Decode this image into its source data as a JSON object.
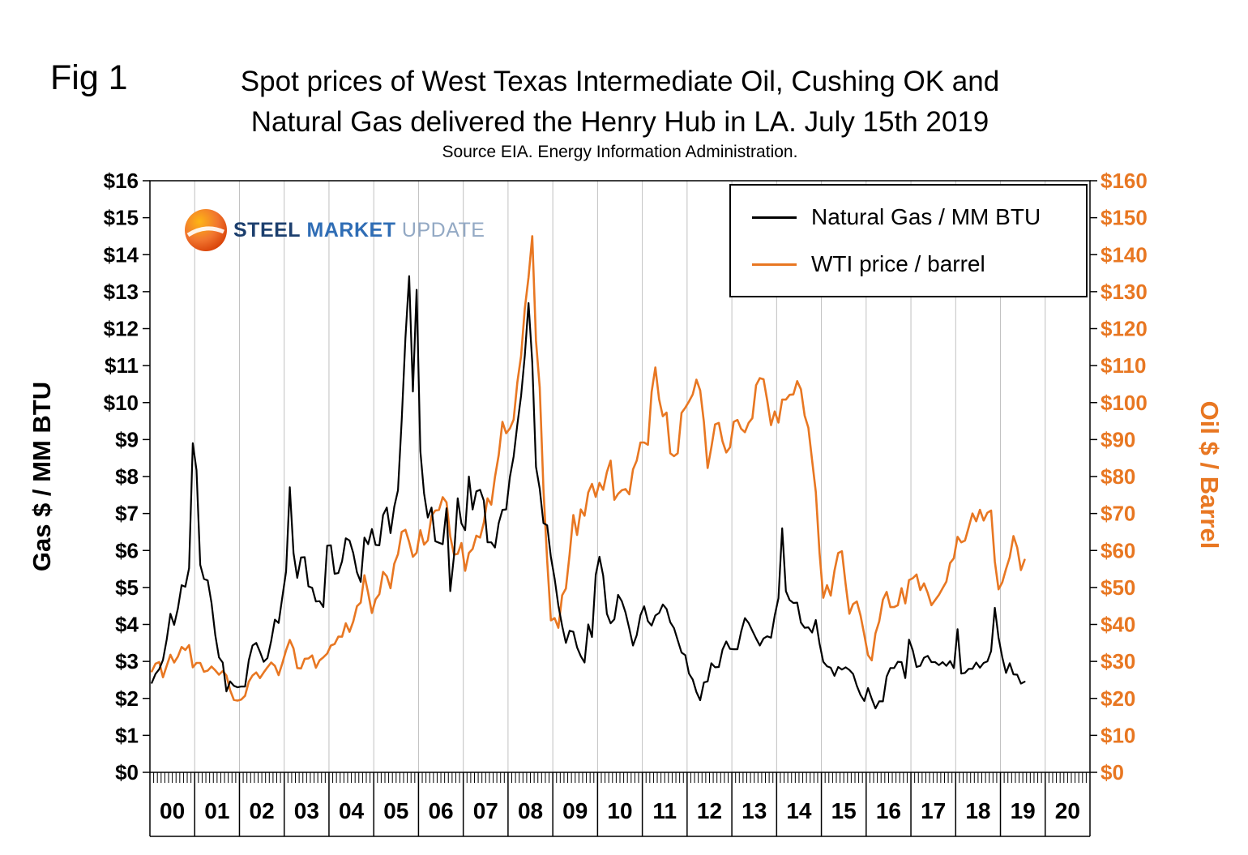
{
  "figure": {
    "fig_label": "Fig 1",
    "title_line1": "Spot prices of West Texas Intermediate Oil, Cushing OK and",
    "title_line2": "Natural Gas delivered the Henry Hub in LA. July 15th 2019",
    "source": "Source EIA. Energy Information Administration."
  },
  "logo": {
    "steel": "STEEL",
    "market": "MARKET",
    "update": "UPDATE"
  },
  "legend": {
    "gas_label": "Natural Gas / MM BTU",
    "oil_label": "WTI price / barrel"
  },
  "colors": {
    "gas": "#000000",
    "oil": "#E87722",
    "gridline": "#c0c0c0"
  },
  "axes": {
    "left_label": "Gas $ / MM BTU",
    "right_label": "Oil $ / Barrel",
    "left_tick_labels": [
      "$0",
      "$1",
      "$2",
      "$3",
      "$4",
      "$5",
      "$6",
      "$7",
      "$8",
      "$9",
      "$10",
      "$11",
      "$12",
      "$13",
      "$14",
      "$15",
      "$16"
    ],
    "right_tick_labels": [
      "$0",
      "$10",
      "$20",
      "$30",
      "$40",
      "$50",
      "$60",
      "$70",
      "$80",
      "$90",
      "$100",
      "$110",
      "$120",
      "$130",
      "$140",
      "$150",
      "$160"
    ],
    "x_tick_labels": [
      "00",
      "01",
      "02",
      "03",
      "04",
      "05",
      "06",
      "07",
      "08",
      "09",
      "10",
      "11",
      "12",
      "13",
      "14",
      "15",
      "16",
      "17",
      "18",
      "19",
      "20"
    ]
  },
  "chart_data": {
    "type": "line",
    "title": "Spot prices of West Texas Intermediate Oil, Cushing OK and Natural Gas delivered the Henry Hub in LA. July 15th 2019",
    "subtitle": "Source EIA. Energy Information Administration.",
    "x_frequency": "monthly",
    "x_start": "2000-01",
    "x_end": "2019-07",
    "x_axis_years": [
      2000,
      2021
    ],
    "left_ylabel": "Gas $ / MM BTU",
    "right_ylabel": "Oil $ / Barrel",
    "left_ylim": [
      0,
      16
    ],
    "right_ylim": [
      0,
      160
    ],
    "grid": "vertical-yearly",
    "legend_position": "top-right-inside",
    "series": [
      {
        "name": "Natural Gas / MM BTU",
        "axis": "left",
        "color": "#000000",
        "values": [
          2.42,
          2.66,
          2.79,
          3.04,
          3.59,
          4.29,
          3.99,
          4.43,
          5.06,
          5.02,
          5.52,
          8.9,
          8.17,
          5.61,
          5.23,
          5.19,
          4.58,
          3.72,
          3.11,
          2.97,
          2.19,
          2.46,
          2.34,
          2.3,
          2.32,
          2.32,
          3.03,
          3.43,
          3.5,
          3.26,
          2.99,
          3.09,
          3.55,
          4.13,
          4.04,
          4.74,
          5.43,
          7.71,
          5.93,
          5.26,
          5.81,
          5.82,
          5.03,
          4.99,
          4.62,
          4.63,
          4.47,
          6.13,
          6.14,
          5.37,
          5.39,
          5.71,
          6.33,
          6.27,
          5.93,
          5.41,
          5.15,
          6.35,
          6.17,
          6.58,
          6.15,
          6.14,
          6.96,
          7.16,
          6.47,
          7.18,
          7.63,
          9.53,
          11.75,
          13.42,
          10.3,
          13.05,
          8.69,
          7.54,
          6.89,
          7.16,
          6.25,
          6.21,
          6.17,
          7.14,
          4.9,
          5.85,
          7.41,
          6.73,
          6.55,
          8.0,
          7.11,
          7.6,
          7.64,
          7.35,
          6.22,
          6.22,
          6.08,
          6.74,
          7.1,
          7.11,
          7.99,
          8.54,
          9.41,
          10.18,
          11.27,
          12.69,
          11.09,
          8.26,
          7.67,
          6.74,
          6.68,
          5.82,
          5.24,
          4.51,
          3.96,
          3.5,
          3.83,
          3.8,
          3.38,
          3.14,
          2.97,
          4.0,
          3.66,
          5.34,
          5.83,
          5.32,
          4.29,
          4.03,
          4.14,
          4.8,
          4.63,
          4.32,
          3.89,
          3.43,
          3.71,
          4.25,
          4.49,
          4.09,
          3.97,
          4.24,
          4.31,
          4.54,
          4.42,
          4.06,
          3.9,
          3.57,
          3.24,
          3.17,
          2.67,
          2.51,
          2.17,
          1.95,
          2.43,
          2.46,
          2.95,
          2.84,
          2.85,
          3.32,
          3.54,
          3.34,
          3.33,
          3.33,
          3.81,
          4.17,
          4.04,
          3.83,
          3.62,
          3.43,
          3.62,
          3.68,
          3.64,
          4.24,
          4.71,
          6.6,
          4.9,
          4.66,
          4.58,
          4.59,
          4.05,
          3.91,
          3.92,
          3.78,
          4.12,
          3.48,
          2.99,
          2.87,
          2.83,
          2.61,
          2.85,
          2.78,
          2.84,
          2.77,
          2.66,
          2.34,
          2.09,
          1.93,
          2.28,
          1.99,
          1.73,
          1.92,
          1.92,
          2.59,
          2.82,
          2.82,
          2.99,
          2.98,
          2.55,
          3.59,
          3.3,
          2.85,
          2.88,
          3.1,
          3.15,
          2.98,
          2.98,
          2.9,
          2.98,
          2.88,
          3.01,
          2.82,
          3.87,
          2.67,
          2.69,
          2.8,
          2.8,
          2.97,
          2.83,
          2.96,
          3.0,
          3.28,
          4.45,
          3.64,
          3.11,
          2.69,
          2.95,
          2.65,
          2.64,
          2.4,
          2.45
        ]
      },
      {
        "name": "WTI price / barrel",
        "axis": "right",
        "color": "#E87722",
        "values": [
          27.3,
          29.4,
          29.8,
          25.7,
          28.8,
          31.8,
          29.7,
          31.3,
          33.9,
          33.1,
          34.4,
          28.4,
          29.6,
          29.6,
          27.2,
          27.5,
          28.6,
          27.6,
          26.4,
          27.4,
          26.2,
          22.2,
          19.6,
          19.4,
          19.7,
          20.7,
          24.5,
          26.2,
          27.0,
          25.5,
          27.0,
          28.4,
          29.7,
          28.8,
          26.3,
          29.5,
          33.0,
          35.8,
          33.5,
          28.2,
          28.1,
          30.7,
          30.8,
          31.6,
          28.3,
          30.3,
          31.1,
          32.1,
          34.3,
          34.7,
          36.7,
          36.7,
          40.3,
          38.0,
          40.8,
          44.9,
          45.9,
          53.3,
          48.5,
          43.1,
          46.8,
          48.2,
          54.2,
          53.0,
          49.8,
          56.4,
          59.0,
          65.0,
          65.6,
          62.3,
          58.3,
          59.4,
          65.5,
          61.6,
          62.7,
          69.4,
          70.8,
          71.0,
          74.4,
          73.0,
          63.8,
          58.9,
          59.1,
          62.0,
          54.5,
          59.3,
          60.4,
          64.0,
          63.5,
          67.5,
          74.1,
          72.4,
          79.9,
          85.8,
          94.8,
          91.7,
          93.0,
          95.4,
          105.5,
          112.6,
          125.4,
          133.9,
          145.0,
          116.7,
          104.1,
          76.6,
          57.3,
          41.1,
          41.7,
          39.1,
          47.9,
          49.7,
          59.0,
          69.6,
          64.2,
          71.1,
          69.4,
          75.7,
          78.0,
          74.5,
          78.3,
          76.4,
          81.2,
          84.3,
          73.7,
          75.3,
          76.3,
          76.6,
          75.2,
          81.9,
          84.3,
          89.2,
          89.2,
          88.6,
          102.9,
          109.5,
          100.9,
          96.3,
          97.3,
          86.3,
          85.5,
          86.3,
          97.2,
          98.6,
          100.3,
          102.2,
          106.2,
          103.3,
          94.7,
          82.3,
          87.9,
          94.1,
          94.5,
          89.5,
          86.5,
          87.9,
          94.8,
          95.3,
          92.9,
          92.0,
          94.5,
          95.8,
          104.7,
          106.6,
          106.3,
          100.5,
          93.9,
          97.6,
          94.6,
          100.8,
          100.8,
          102.1,
          102.2,
          105.8,
          103.6,
          96.5,
          93.2,
          84.4,
          75.8,
          59.3,
          47.2,
          50.6,
          47.8,
          54.5,
          59.3,
          59.8,
          50.9,
          42.9,
          45.5,
          46.2,
          42.4,
          37.2,
          31.7,
          30.3,
          37.6,
          40.8,
          46.7,
          48.8,
          44.7,
          44.7,
          45.2,
          49.8,
          45.7,
          52.0,
          52.5,
          53.5,
          49.3,
          51.1,
          48.5,
          45.2,
          46.6,
          48.0,
          49.8,
          51.6,
          56.6,
          57.9,
          63.7,
          62.2,
          62.7,
          66.3,
          70.0,
          67.9,
          71.0,
          68.1,
          70.2,
          70.8,
          57.0,
          49.5,
          51.4,
          55.0,
          58.2,
          63.9,
          60.8,
          54.7,
          57.5
        ]
      }
    ]
  }
}
